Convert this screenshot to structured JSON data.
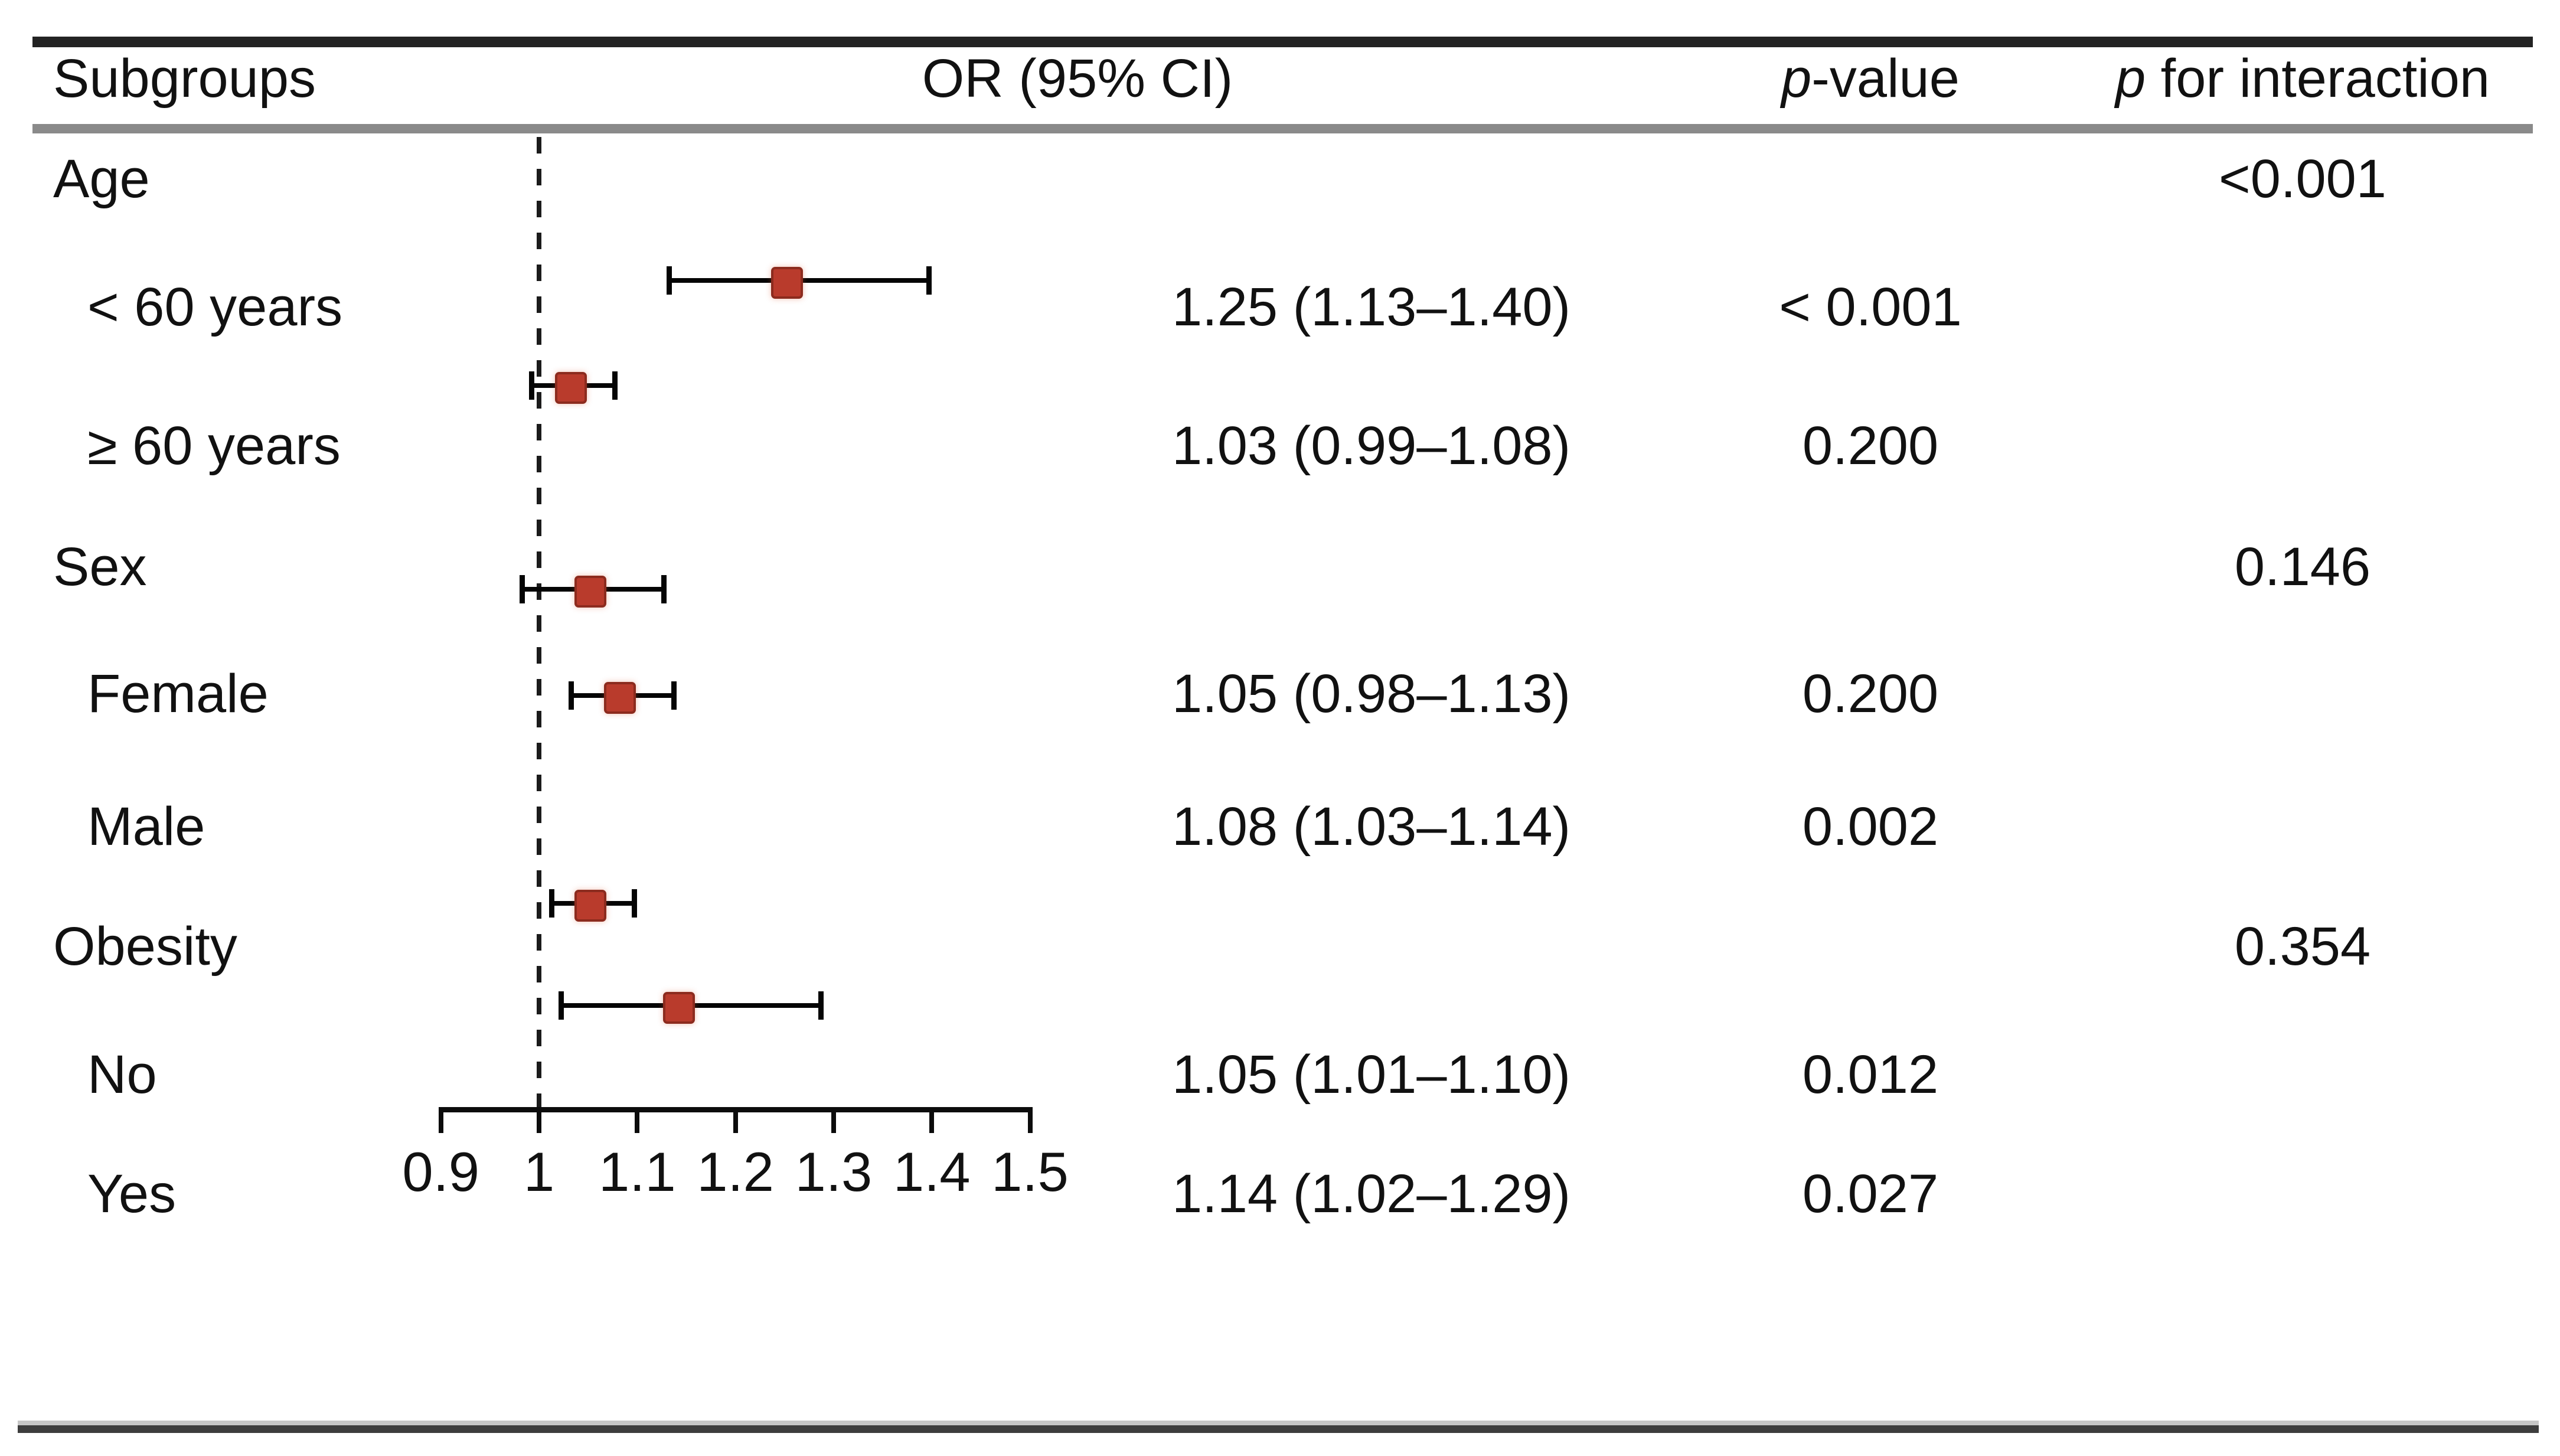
{
  "header": {
    "subgroups": "Subgroups",
    "or_ci": "OR (95% CI)",
    "p_value": {
      "italic": "p",
      "rest": "-value"
    },
    "p_interaction": {
      "italic": "p",
      "rest": " for interaction"
    }
  },
  "rows": [
    {
      "label": "Age",
      "type": "group",
      "p_interaction": "<0.001"
    },
    {
      "label": "< 60 years",
      "type": "sub",
      "or_ci": "1.25 (1.13–1.40)",
      "p": "< 0.001"
    },
    {
      "label": "≥ 60 years",
      "type": "sub",
      "or_ci": "1.03 (0.99–1.08)",
      "p": "0.200"
    },
    {
      "label": "Sex",
      "type": "group",
      "p_interaction": "0.146"
    },
    {
      "label": "Female",
      "type": "sub",
      "or_ci": "1.05 (0.98–1.13)",
      "p": "0.200"
    },
    {
      "label": "Male",
      "type": "sub",
      "or_ci": "1.08 (1.03–1.14)",
      "p": "0.002"
    },
    {
      "label": "Obesity",
      "type": "group",
      "p_interaction": "0.354"
    },
    {
      "label": "No",
      "type": "sub",
      "or_ci": "1.05 (1.01–1.10)",
      "p": "0.012"
    },
    {
      "label": "Yes",
      "type": "sub",
      "or_ci": "1.14 (1.02–1.29)",
      "p": "0.027"
    }
  ],
  "chart_data": {
    "type": "scatter",
    "subtype": "forest-plot",
    "title": "",
    "xlabel": "",
    "ylabel": "",
    "xlim": [
      0.9,
      1.5
    ],
    "x_tick_values": [
      0.9,
      1,
      1.1,
      1.2,
      1.3,
      1.4,
      1.5
    ],
    "x_ticks": [
      "0.9",
      "1",
      "1.1",
      "1.2",
      "1.3",
      "1.4",
      "1.5"
    ],
    "reference_line": 1.0,
    "grid": false,
    "legend": false,
    "estimates": [
      {
        "label": "< 60 years",
        "or": 1.25,
        "ci_low": 1.13,
        "ci_high": 1.4,
        "p": "< 0.001"
      },
      {
        "label": "≥ 60 years",
        "or": 1.03,
        "ci_low": 0.99,
        "ci_high": 1.08,
        "p": "0.200"
      },
      {
        "label": "Female",
        "or": 1.05,
        "ci_low": 0.98,
        "ci_high": 1.13,
        "p": "0.200"
      },
      {
        "label": "Male",
        "or": 1.08,
        "ci_low": 1.03,
        "ci_high": 1.14,
        "p": "0.002"
      },
      {
        "label": "No",
        "or": 1.05,
        "ci_low": 1.01,
        "ci_high": 1.1,
        "p": "0.012"
      },
      {
        "label": "Yes",
        "or": 1.14,
        "ci_low": 1.02,
        "ci_high": 1.29,
        "p": "0.027"
      }
    ],
    "p_for_interaction": [
      {
        "group": "Age",
        "value": "<0.001"
      },
      {
        "group": "Sex",
        "value": "0.146"
      },
      {
        "group": "Obesity",
        "value": "0.354"
      }
    ],
    "colors": {
      "marker_fill": "#b93b2c",
      "marker_border": "#8c2b1e",
      "error_bar": "#050505",
      "reference_line": "#1b1b1b",
      "header_separator": "#8a8a8a",
      "top_rule": "#232323",
      "bottom_rule": "#3d3d3d"
    }
  }
}
